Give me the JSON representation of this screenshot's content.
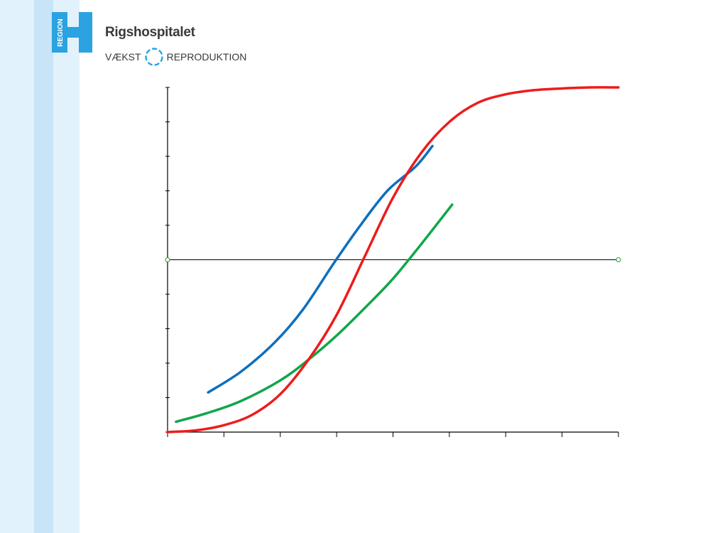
{
  "header": {
    "logo_text": "REGION",
    "logo_letter": "H",
    "title": "Rigshospitalet",
    "subtitle_left": "VÆKST",
    "subtitle_right": "REPRODUKTION",
    "brand_color": "#2aa3e0"
  },
  "chart_data": {
    "type": "line",
    "title": "",
    "xlabel": "",
    "ylabel": "",
    "xlim": [
      0,
      8
    ],
    "ylim": [
      -5,
      5
    ],
    "x_ticks": [
      0,
      1,
      2,
      3,
      4,
      5,
      6,
      7,
      8
    ],
    "y_ticks": [
      -5,
      -4,
      -3,
      -2,
      -1,
      0,
      1,
      2,
      3,
      4,
      5
    ],
    "tick_labels_shown": false,
    "reference_line_y": 0,
    "grid": false,
    "legend": "none",
    "series": [
      {
        "color": "#0f6fbd",
        "points": [
          [
            0.72,
            -3.85
          ],
          [
            1.3,
            -3.25
          ],
          [
            1.9,
            -2.4
          ],
          [
            2.4,
            -1.45
          ],
          [
            2.95,
            -0.1
          ],
          [
            3.4,
            0.95
          ],
          [
            3.9,
            2.0
          ],
          [
            4.4,
            2.7
          ],
          [
            4.7,
            3.3
          ]
        ]
      },
      {
        "color": "#10a64a",
        "points": [
          [
            0.15,
            -4.7
          ],
          [
            0.7,
            -4.45
          ],
          [
            1.3,
            -4.1
          ],
          [
            2.0,
            -3.5
          ],
          [
            2.5,
            -2.9
          ],
          [
            3.0,
            -2.2
          ],
          [
            3.5,
            -1.4
          ],
          [
            4.0,
            -0.55
          ],
          [
            4.5,
            0.45
          ],
          [
            5.05,
            1.6
          ]
        ]
      },
      {
        "color": "#ee1b1b",
        "points": [
          [
            0.0,
            -5.0
          ],
          [
            0.5,
            -4.95
          ],
          [
            1.0,
            -4.8
          ],
          [
            1.5,
            -4.5
          ],
          [
            2.0,
            -3.9
          ],
          [
            2.5,
            -2.9
          ],
          [
            3.0,
            -1.6
          ],
          [
            3.5,
            0.1
          ],
          [
            4.0,
            1.8
          ],
          [
            4.5,
            3.1
          ],
          [
            5.0,
            4.0
          ],
          [
            5.5,
            4.55
          ],
          [
            6.0,
            4.8
          ],
          [
            6.5,
            4.92
          ],
          [
            7.0,
            4.97
          ],
          [
            7.5,
            5.0
          ],
          [
            8.0,
            5.0
          ]
        ]
      }
    ]
  }
}
